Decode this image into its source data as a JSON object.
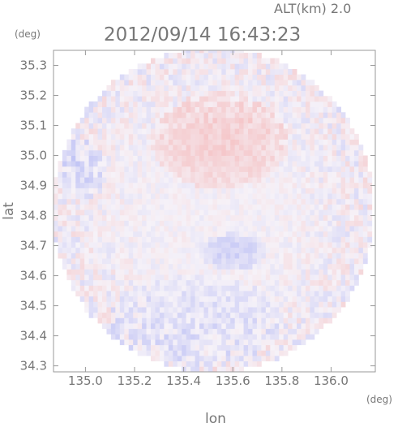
{
  "header": {
    "altitude_label": "ALT(km) 2.0",
    "timestamp": "2012/09/14 16:43:23",
    "y_unit": "(deg)",
    "x_unit": "(deg)"
  },
  "chart_data": {
    "type": "heatmap",
    "title": "2012/09/14 16:43:23",
    "xlabel": "lon",
    "ylabel": "lat",
    "x_unit": "deg",
    "y_unit": "deg",
    "xlim": [
      134.87,
      136.18
    ],
    "ylim": [
      34.28,
      35.35
    ],
    "x_ticks": [
      135.0,
      135.2,
      135.4,
      135.6,
      135.8,
      136.0
    ],
    "x_tick_labels": [
      "135.0",
      "135.2",
      "135.4",
      "135.6",
      "135.8",
      "136.0"
    ],
    "y_ticks": [
      34.3,
      34.4,
      34.5,
      34.6,
      34.7,
      34.8,
      34.9,
      35.0,
      35.1,
      35.2,
      35.3
    ],
    "y_tick_labels": [
      "34.3",
      "34.4",
      "34.5",
      "34.6",
      "34.7",
      "34.8",
      "34.9",
      "35.0",
      "35.1",
      "35.2",
      "35.3"
    ],
    "coverage": {
      "shape": "circle",
      "center": {
        "lon": 135.52,
        "lat": 34.82
      },
      "radius_lon": 0.655,
      "radius_lat": 0.54
    },
    "colors": {
      "positive": "#f4a8a8",
      "negative": "#a8aef4",
      "neutral": "#f6f2f8",
      "frame": "#9a9a9a",
      "text": "#777777"
    },
    "regions": [
      {
        "name": "north-pink",
        "sign": "positive",
        "lon": 135.55,
        "lat": 35.05,
        "rlon": 0.28,
        "rlat": 0.16,
        "strength": 0.45
      },
      {
        "name": "center-blue",
        "sign": "negative",
        "lon": 135.6,
        "lat": 34.68,
        "rlon": 0.14,
        "rlat": 0.06,
        "strength": 0.45
      },
      {
        "name": "west-blue",
        "sign": "negative",
        "lon": 134.98,
        "lat": 34.95,
        "rlon": 0.1,
        "rlat": 0.1,
        "strength": 0.35
      },
      {
        "name": "south-blue",
        "sign": "negative",
        "lon": 135.45,
        "lat": 34.45,
        "rlon": 0.35,
        "rlat": 0.15,
        "strength": 0.25
      }
    ]
  }
}
